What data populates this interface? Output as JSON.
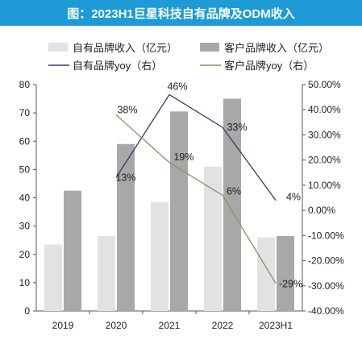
{
  "title": "图：2023H1巨星科技自有品牌及ODM收入",
  "chart_data": {
    "type": "bar",
    "categories": [
      "2019",
      "2020",
      "2021",
      "2022",
      "2023H1"
    ],
    "series": [
      {
        "name": "自有品牌收入（亿元）",
        "type": "bar",
        "axis": "left",
        "color": "#e2e2e2",
        "values": [
          23.5,
          26.5,
          38.5,
          51,
          26
        ]
      },
      {
        "name": "客户品牌收入（亿元）",
        "type": "bar",
        "axis": "left",
        "color": "#a8a8a8",
        "values": [
          42.5,
          59,
          70.5,
          75,
          26.5
        ]
      },
      {
        "name": "自有品牌yoy（右）",
        "type": "line",
        "axis": "right",
        "color": "#2b3f66",
        "values": [
          null,
          0.13,
          0.46,
          0.33,
          0.04
        ],
        "labels": [
          "",
          "13%",
          "46%",
          "33%",
          "4%"
        ]
      },
      {
        "name": "客户品牌yoy（右）",
        "type": "line",
        "axis": "right",
        "color": "#8d8f5c",
        "values": [
          null,
          0.38,
          0.19,
          0.06,
          -0.29
        ],
        "labels": [
          "",
          "38%",
          "19%",
          "6%",
          "-29%"
        ]
      }
    ],
    "y_left": {
      "min": 0,
      "max": 80,
      "step": 10,
      "ticks": [
        "0",
        "10",
        "20",
        "30",
        "40",
        "50",
        "60",
        "70",
        "80"
      ]
    },
    "y_right": {
      "min": -0.4,
      "max": 0.5,
      "step": 0.1,
      "ticks": [
        "-40.00%",
        "-30.00%",
        "-20.00%",
        "-10.00%",
        "0.00%",
        "10.00%",
        "20.00%",
        "30.00%",
        "40.00%",
        "50.00%"
      ]
    },
    "grid": false,
    "legend_position": "top"
  }
}
